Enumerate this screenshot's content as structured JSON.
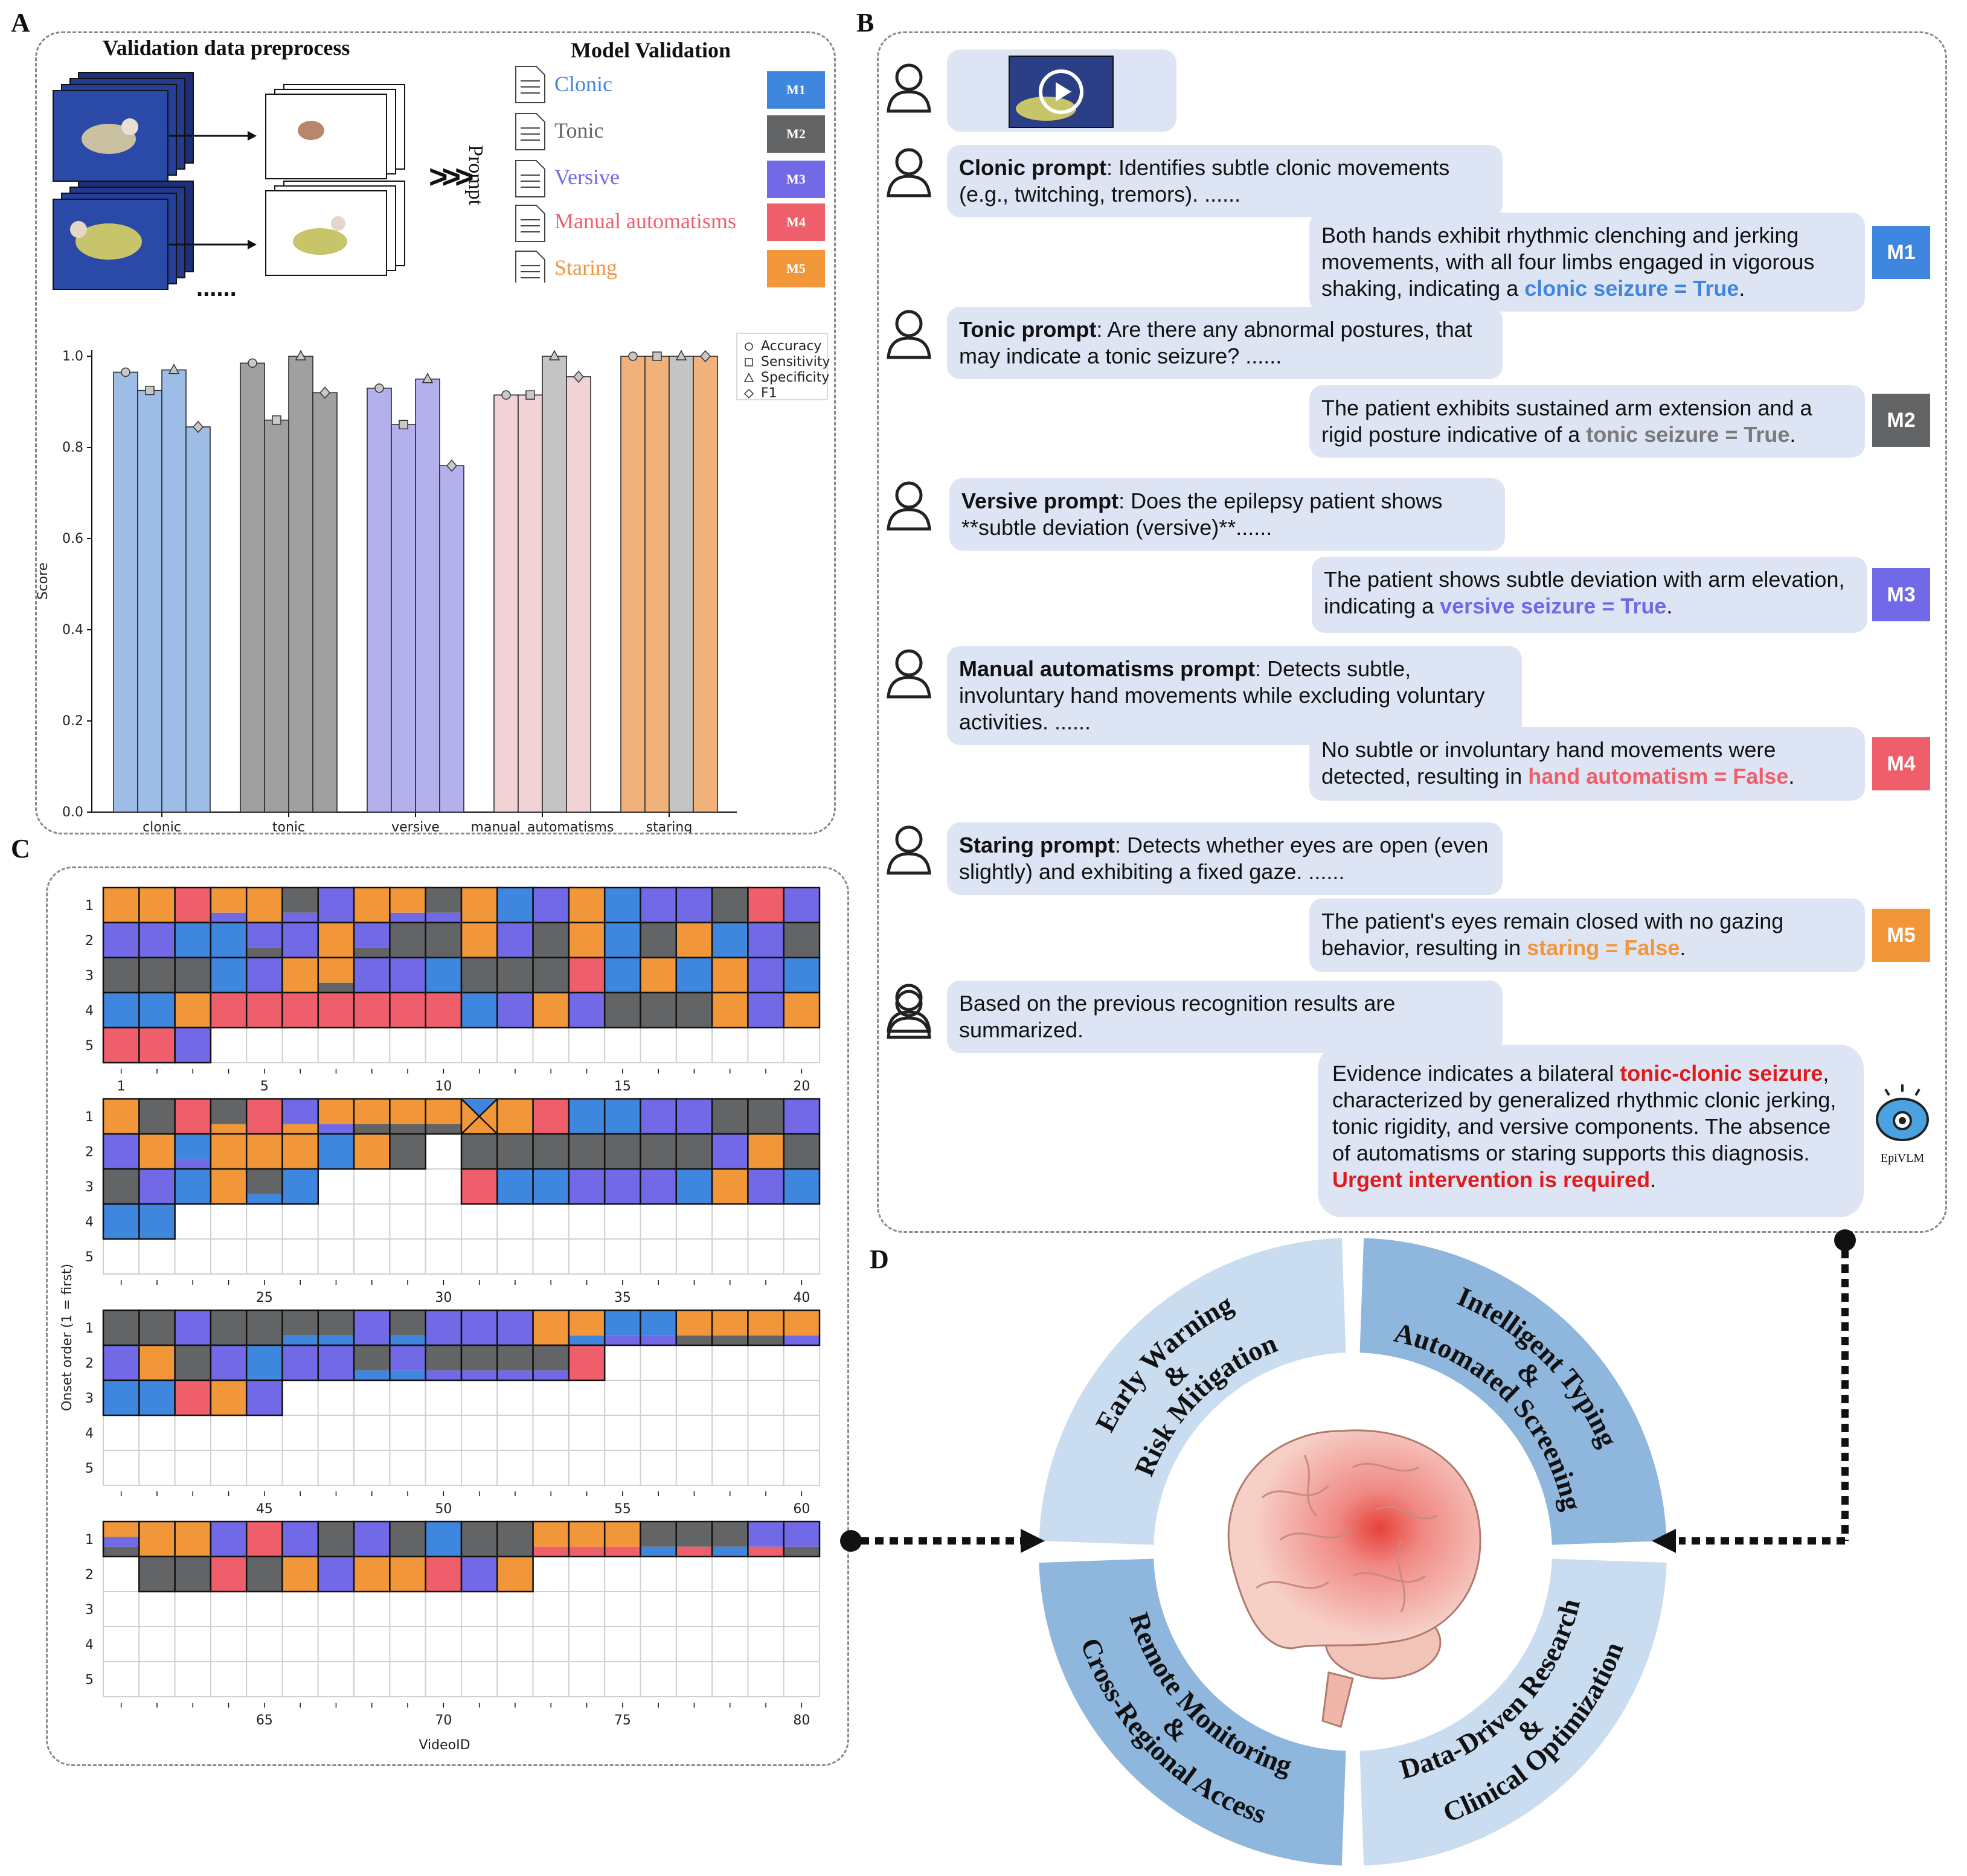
{
  "panels": {
    "a": "A",
    "b": "B",
    "c": "C",
    "d": "D"
  },
  "panel_a": {
    "preprocess_title": "Validation data preprocess",
    "model_validation_title": "Model Validation",
    "prompt_label": "Prompt",
    "ellipsis": "......",
    "arrows": ">>>",
    "models": [
      {
        "label": "Clonic",
        "badge": "M1",
        "color": "#3f86de"
      },
      {
        "label": "Tonic",
        "badge": "M2",
        "color": "#636466"
      },
      {
        "label": "Versive",
        "badge": "M3",
        "color": "#7169e6"
      },
      {
        "label": "Manual automatisms",
        "badge": "M4",
        "color": "#ef5f6b"
      },
      {
        "label": "Staring",
        "badge": "M5",
        "color": "#f2963a"
      }
    ]
  },
  "chart_data": {
    "type": "bar",
    "ylabel": "Score",
    "ylim": [
      0,
      1.0
    ],
    "yticks": [
      "0.0",
      "0.2",
      "0.4",
      "0.6",
      "0.8",
      "1.0"
    ],
    "categories": [
      "clonic",
      "tonic",
      "versive",
      "manual_automatisms",
      "staring"
    ],
    "series": [
      {
        "name": "Accuracy",
        "marker": "circle",
        "values": [
          0.965,
          0.985,
          0.93,
          0.915,
          1.0
        ]
      },
      {
        "name": "Sensitivity",
        "marker": "square",
        "values": [
          0.925,
          0.86,
          0.85,
          0.915,
          1.0
        ]
      },
      {
        "name": "Specificity",
        "marker": "triangle",
        "values": [
          0.97,
          1.0,
          0.95,
          1.0,
          1.0
        ]
      },
      {
        "name": "F1",
        "marker": "diamond",
        "values": [
          0.845,
          0.92,
          0.76,
          0.955,
          1.0
        ]
      }
    ],
    "bar_colors": [
      "#9dbde6",
      "#a0a0a0",
      "#b3b0ec",
      "#f1d3d6",
      "#f0b27a"
    ],
    "specificity_colors": [
      "#9dbde6",
      "#a0a0a0",
      "#b3b0ec",
      "#c4c4c4",
      "#c4c4c4"
    ],
    "legend_position": "top-right"
  },
  "panel_b": {
    "messages": [
      {
        "role": "user",
        "type": "video"
      },
      {
        "role": "user",
        "bold": "Clonic prompt",
        "text": ": Identifies subtle clonic movements (e.g., twitching, tremors). ......"
      },
      {
        "role": "model",
        "badge": "M1",
        "text": "Both hands exhibit rhythmic clenching and jerking movements, with all four limbs engaged in vigorous shaking, indicating a ",
        "highlight": "clonic seizure = True",
        "end": "."
      },
      {
        "role": "user",
        "bold": "Tonic prompt",
        "text": ": Are there any abnormal postures, that may indicate a tonic seizure?  ......"
      },
      {
        "role": "model",
        "badge": "M2",
        "text": "The patient exhibits sustained arm extension and a rigid posture indicative of a ",
        "highlight": "tonic seizure = True",
        "end": "."
      },
      {
        "role": "user",
        "bold": "Versive prompt",
        "text": ": Does the epilepsy patient shows **subtle deviation (versive)**......"
      },
      {
        "role": "model",
        "badge": "M3",
        "text": "The patient shows subtle deviation with arm elevation, indicating a ",
        "highlight": "versive seizure = True",
        "end": "."
      },
      {
        "role": "user",
        "bold": "Manual automatisms prompt",
        "text": ": Detects subtle, involuntary hand movements while excluding voluntary activities. ......"
      },
      {
        "role": "model",
        "badge": "M4",
        "text": "No subtle or involuntary hand movements were detected, resulting in ",
        "highlight": "hand automatism = False",
        "end": "."
      },
      {
        "role": "user",
        "bold": "Staring prompt",
        "text": ": Detects whether eyes are open (even slightly) and exhibiting a fixed gaze. ......"
      },
      {
        "role": "model",
        "badge": "M5",
        "text": "The patient's eyes remain closed with no gazing behavior, resulting in ",
        "highlight": "staring = False",
        "end": "."
      },
      {
        "role": "user",
        "text": "Based on the previous recognition results are summarized."
      },
      {
        "role": "final",
        "text1": "Evidence indicates a bilateral ",
        "highlight1": "tonic-clonic seizure",
        "text2": ", characterized by generalized rhythmic clonic jerking, tonic rigidity, and versive components. The absence of automatisms or staring supports this diagnosis. ",
        "highlight2": "Urgent intervention is required",
        "end": "."
      }
    ],
    "epivlm_label": "EpiVLM"
  },
  "panel_c": {
    "ylabel": "Onset order (1 = first)",
    "xlabel": "VideoID",
    "row_labels": [
      "1",
      "2",
      "3",
      "4",
      "5"
    ],
    "axis_ticks": [
      [
        "1",
        "5",
        "10",
        "15",
        "20"
      ],
      [
        "25",
        "30",
        "35",
        "40"
      ],
      [
        "45",
        "50",
        "55",
        "60"
      ],
      [
        "65",
        "70",
        "75",
        "80"
      ]
    ]
  },
  "panel_d": {
    "segments": [
      {
        "line1": "Early Warning",
        "line2": "&",
        "line3": "Risk Mitigation"
      },
      {
        "line1": "Intelligent Typing",
        "line2": "&",
        "line3": "Automated Screening"
      },
      {
        "line1": "Remote Monitoring",
        "line2": "&",
        "line3": "Cross-Regional Access"
      },
      {
        "line1": "Data-Driven Research",
        "line2": "&",
        "line3": "Clinical Optimization"
      }
    ]
  }
}
